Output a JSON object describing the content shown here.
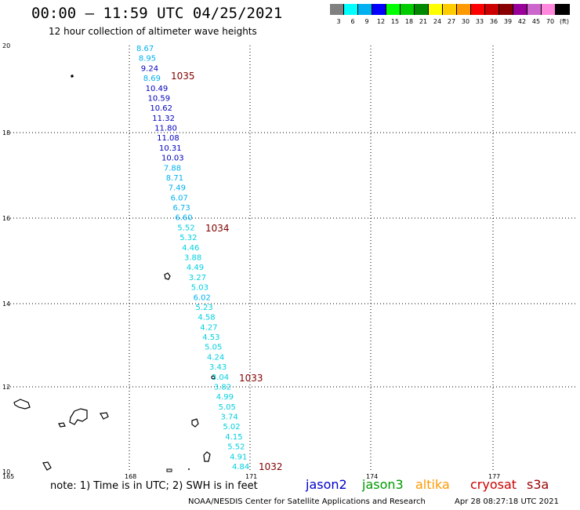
{
  "header": {
    "title": "00:00 – 11:59 UTC 04/25/2021",
    "subtitle": "12 hour collection of altimeter wave heights"
  },
  "legend": {
    "colors": [
      "#808080",
      "#00ffff",
      "#00b0f0",
      "#0000ff",
      "#00ff00",
      "#00cc00",
      "#008800",
      "#ffff00",
      "#ffcc00",
      "#ff9900",
      "#ff0000",
      "#cc0000",
      "#880000",
      "#990099",
      "#cc66cc",
      "#ff88dd",
      "#000000"
    ],
    "labels": [
      "3",
      "6",
      "9",
      "12",
      "15",
      "18",
      "21",
      "24",
      "27",
      "30",
      "33",
      "36",
      "39",
      "42",
      "45",
      "70",
      "(ft)"
    ]
  },
  "axes": {
    "lat_labels": [
      "20",
      "18",
      "16",
      "14",
      "12",
      "10"
    ],
    "lon_labels": [
      "165",
      "168",
      "171",
      "174",
      "177"
    ]
  },
  "wave_heights": [
    {
      "v": "8.67",
      "c": "#00b0f0"
    },
    {
      "v": "8.95",
      "c": "#00b0f0"
    },
    {
      "v": "9.24",
      "c": "#0000c0"
    },
    {
      "v": "8.69",
      "c": "#00b0f0"
    },
    {
      "v": "10.49",
      "c": "#0000c0"
    },
    {
      "v": "10.59",
      "c": "#0000c0"
    },
    {
      "v": "10.62",
      "c": "#0000c0"
    },
    {
      "v": "11.32",
      "c": "#0000c0"
    },
    {
      "v": "11.80",
      "c": "#0000c0"
    },
    {
      "v": "11.08",
      "c": "#0000c0"
    },
    {
      "v": "10.31",
      "c": "#0000c0"
    },
    {
      "v": "10.03",
      "c": "#0000c0"
    },
    {
      "v": "7.88",
      "c": "#00b0f0"
    },
    {
      "v": "8.71",
      "c": "#00b0f0"
    },
    {
      "v": "7.49",
      "c": "#00b0f0"
    },
    {
      "v": "6.07",
      "c": "#00b0f0"
    },
    {
      "v": "6.73",
      "c": "#00b0f0"
    },
    {
      "v": "6.60",
      "c": "#00b0f0"
    },
    {
      "v": "5.52",
      "c": "#00d0e0"
    },
    {
      "v": "5.32",
      "c": "#00d0e0"
    },
    {
      "v": "4.46",
      "c": "#00d0e0"
    },
    {
      "v": "3.88",
      "c": "#00d0e0"
    },
    {
      "v": "4.49",
      "c": "#00d0e0"
    },
    {
      "v": "3.27",
      "c": "#00d0e0"
    },
    {
      "v": "5.03",
      "c": "#00d0e0"
    },
    {
      "v": "6.02",
      "c": "#00b0f0"
    },
    {
      "v": "5.23",
      "c": "#00d0e0"
    },
    {
      "v": "4.58",
      "c": "#00d0e0"
    },
    {
      "v": "4.27",
      "c": "#00d0e0"
    },
    {
      "v": "4.53",
      "c": "#00d0e0"
    },
    {
      "v": "5.05",
      "c": "#00d0e0"
    },
    {
      "v": "4.24",
      "c": "#00d0e0"
    },
    {
      "v": "3.43",
      "c": "#00d0e0"
    },
    {
      "v": "3.04",
      "c": "#00d0e0"
    },
    {
      "v": "3.82",
      "c": "#00d0e0"
    },
    {
      "v": "4.99",
      "c": "#00d0e0"
    },
    {
      "v": "5.05",
      "c": "#00d0e0"
    },
    {
      "v": "3.74",
      "c": "#00d0e0"
    },
    {
      "v": "5.02",
      "c": "#00d0e0"
    },
    {
      "v": "4.15",
      "c": "#00d0e0"
    },
    {
      "v": "5.52",
      "c": "#00d0e0"
    },
    {
      "v": "4.91",
      "c": "#00d0e0"
    },
    {
      "v": "4.84",
      "c": "#00d0e0"
    }
  ],
  "pressure_labels": [
    "1035",
    "1034",
    "1033",
    "1032"
  ],
  "footer": {
    "note": "note: 1) Time is in UTC; 2) SWH is in feet",
    "credit": "NOAA/NESDIS Center for Satellite Applications and Research",
    "timestamp": "Apr 28 08:27:18 UTC 2021",
    "satellites": [
      {
        "name": "jason2",
        "color": "#0000cc"
      },
      {
        "name": "jason3",
        "color": "#009900"
      },
      {
        "name": "altika",
        "color": "#ff9900"
      },
      {
        "name": "cryosat",
        "color": "#cc0000"
      },
      {
        "name": "s3a",
        "color": "#990000"
      }
    ]
  }
}
